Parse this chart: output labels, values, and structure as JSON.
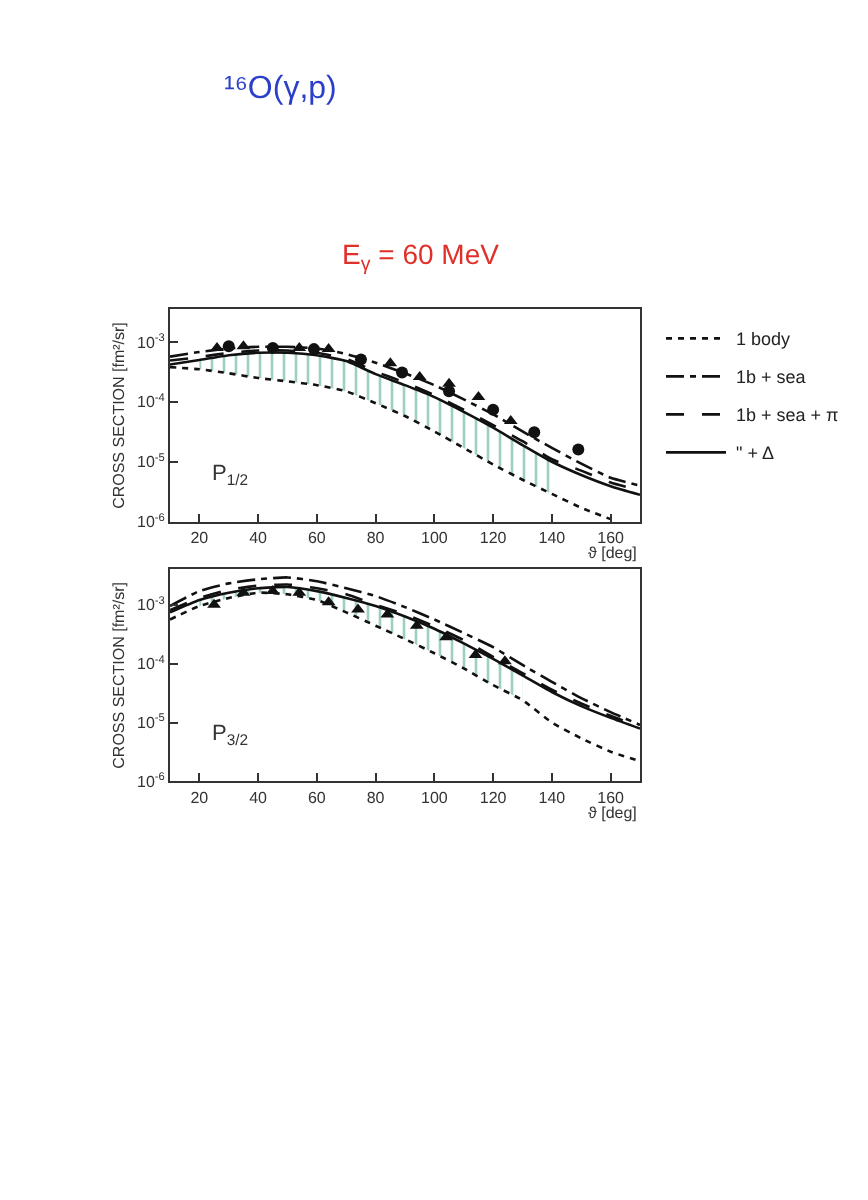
{
  "chart_data": [
    {
      "type": "line",
      "title": "¹⁶O(γ,p)",
      "subtitle": "E$_{γ}$ = 60 MeV",
      "xlabel": "ϑ [deg]",
      "ylabel": "CROSS SECTION [fm²/sr]",
      "log": "y",
      "legend": "right",
      "xlim": [
        10,
        170
      ],
      "xticks": [
        20,
        40,
        60,
        80,
        100,
        120,
        140,
        160
      ],
      "ylim": [
        1e-06,
        0.0035
      ],
      "yticks": [
        {
          "value": 1e-06,
          "label": "10$^{-6}$"
        },
        {
          "value": 1e-05,
          "label": "10$^{-5}$"
        },
        {
          "value": 0.0001,
          "label": "10$^{-4}$"
        },
        {
          "value": 0.001,
          "label": "10$^{-3}$"
        }
      ],
      "annotations": [
        "P$_{1/2}$"
      ],
      "x": [
        10,
        20,
        30,
        40,
        50,
        60,
        70,
        80,
        90,
        100,
        110,
        120,
        130,
        140,
        150,
        160,
        170
      ],
      "series": [
        {
          "name": "1 body",
          "color": "#111111",
          "line_style": "dotted",
          "values": [
            0.00038,
            0.00035,
            0.0003,
            0.00025,
            0.00022,
            0.00019,
            0.00015,
            9.5e-05,
            5.8e-05,
            3.2e-05,
            1.7e-05,
            9e-06,
            5e-06,
            2.9e-06,
            1.7e-06,
            1.1e-06,
            null
          ]
        },
        {
          "name": "1b + sea",
          "color": "#111111",
          "line_style": "dashdot",
          "values": [
            0.00057,
            0.00068,
            0.00078,
            0.00083,
            0.00083,
            0.00078,
            0.00063,
            0.00045,
            0.0003,
            0.00019,
            0.00011,
            6.2e-05,
            3.2e-05,
            1.7e-05,
            9.3e-06,
            5.4e-06,
            4e-06
          ]
        },
        {
          "name": "1b + sea + π",
          "color": "#111111",
          "line_style": "dashed",
          "values": [
            0.00049,
            0.00056,
            0.00066,
            0.00072,
            0.00072,
            0.00066,
            0.00052,
            0.00032,
            0.00021,
            0.00013,
            7.4e-05,
            4.1e-05,
            2.2e-05,
            1.1e-05,
            7.1e-06,
            4.5e-06,
            3.3e-06
          ]
        },
        {
          "name": "\" + Δ",
          "color": "#111111",
          "line_style": "solid",
          "values": [
            0.00042,
            0.0005,
            0.0006,
            0.00066,
            0.00066,
            0.0006,
            0.00048,
            0.00029,
            0.00019,
            0.00012,
            6.8e-05,
            3.7e-05,
            1.9e-05,
            1e-05,
            6e-06,
            3.9e-06,
            2.8e-06
          ],
          "lower": [
            null,
            0.00035,
            0.0003,
            0.00025,
            0.00022,
            0.00019,
            0.00015,
            9.5e-05,
            5.8e-05,
            3.2e-05,
            1.7e-05,
            9e-06,
            5e-06,
            2.9e-06,
            null,
            null,
            null
          ],
          "upper": [
            null,
            0.0005,
            0.0006,
            0.00066,
            0.00066,
            0.0006,
            0.00048,
            0.00029,
            0.00019,
            0.00012,
            6.8e-05,
            3.7e-05,
            1.9e-05,
            1e-05,
            null,
            null,
            null
          ]
        },
        {
          "type": "scatter",
          "marker": "triangle",
          "color": "#111111",
          "x": [
            26,
            35,
            54,
            64,
            85,
            95,
            105,
            115,
            126
          ],
          "values": [
            0.00079,
            0.00085,
            0.00079,
            0.00076,
            0.00044,
            0.00026,
            0.0002,
            0.00012,
            4.8e-05
          ]
        },
        {
          "type": "scatter",
          "marker": "circle",
          "color": "#111111",
          "x": [
            30,
            45,
            59,
            75,
            89,
            105,
            120,
            134,
            149
          ],
          "values": [
            0.00085,
            0.00079,
            0.00076,
            0.00051,
            0.00031,
            0.00015,
            7.4e-05,
            3.1e-05,
            1.6e-05
          ]
        }
      ]
    },
    {
      "type": "line",
      "xlabel": "ϑ [deg]",
      "ylabel": "CROSS SECTION [fm²/sr]",
      "log": "y",
      "xlim": [
        10,
        170
      ],
      "xticks": [
        20,
        40,
        60,
        80,
        100,
        120,
        140,
        160
      ],
      "ylim": [
        1e-06,
        0.004
      ],
      "yticks": [
        {
          "value": 1e-06,
          "label": "10$^{-6}$"
        },
        {
          "value": 1e-05,
          "label": "10$^{-5}$"
        },
        {
          "value": 0.0001,
          "label": "10$^{-4}$"
        },
        {
          "value": 0.001,
          "label": "10$^{-3}$"
        }
      ],
      "annotations": [
        "P$_{3/2}$"
      ],
      "x": [
        10,
        20,
        30,
        40,
        50,
        60,
        70,
        80,
        90,
        100,
        110,
        120,
        130,
        140,
        150,
        160,
        170
      ],
      "series": [
        {
          "color": "#111111",
          "line_style": "dotted",
          "values": [
            0.00056,
            0.00095,
            0.0013,
            0.0016,
            0.0015,
            0.0012,
            0.00074,
            0.00044,
            0.00026,
            0.00015,
            8.3e-05,
            4.3e-05,
            2.4e-05,
            1e-05,
            5.4e-06,
            3.2e-06,
            2.2e-06
          ]
        },
        {
          "color": "#111111",
          "line_style": "dashdot",
          "values": [
            0.00095,
            0.0017,
            0.0023,
            0.0027,
            0.0029,
            0.0025,
            0.0019,
            0.0014,
            0.00091,
            0.00056,
            0.00033,
            0.00019,
            9.5e-05,
            4.9e-05,
            2.6e-05,
            1.5e-05,
            9.1e-06
          ]
        },
        {
          "color": "#111111",
          "line_style": "dashed",
          "values": [
            0.00081,
            0.0013,
            0.0018,
            0.0021,
            0.0022,
            0.0019,
            0.0015,
            0.001,
            0.00069,
            0.00043,
            0.00025,
            0.00013,
            6.9e-05,
            3.6e-05,
            2.1e-05,
            1.3e-05,
            8.5e-06
          ]
        },
        {
          "color": "#111111",
          "line_style": "solid",
          "values": [
            0.00074,
            0.0012,
            0.0016,
            0.0019,
            0.002,
            0.0017,
            0.0013,
            0.00095,
            0.00063,
            0.00039,
            0.00022,
            0.00012,
            6.3e-05,
            3.3e-05,
            1.9e-05,
            1.2e-05,
            7.9e-06
          ],
          "lower": [
            null,
            0.00095,
            0.0013,
            0.0016,
            0.0015,
            0.0012,
            0.00074,
            0.00044,
            0.00026,
            0.00015,
            8.3e-05,
            4.3e-05,
            2.4e-05,
            null,
            null,
            null,
            null
          ],
          "upper": [
            null,
            0.0012,
            0.0016,
            0.0019,
            0.002,
            0.0017,
            0.0013,
            0.00095,
            0.00063,
            0.00039,
            0.00022,
            0.00012,
            6.3e-05,
            null,
            null,
            null,
            null
          ]
        },
        {
          "type": "scatter",
          "marker": "triangle",
          "color": "#111111",
          "x": [
            25,
            35,
            45,
            54,
            64,
            74,
            84,
            94,
            104,
            114,
            124
          ],
          "values": [
            0.001,
            0.0016,
            0.0017,
            0.0016,
            0.0011,
            0.00083,
            0.00068,
            0.00044,
            0.00028,
            0.00014,
            0.00011
          ]
        }
      ]
    }
  ]
}
